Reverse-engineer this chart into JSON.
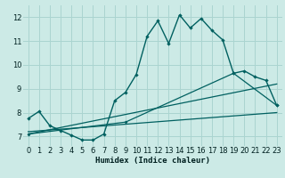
{
  "xlabel": "Humidex (Indice chaleur)",
  "bg_color": "#cceae6",
  "line_color": "#006060",
  "grid_color": "#aad4d0",
  "xlim": [
    -0.5,
    23.5
  ],
  "ylim": [
    6.6,
    12.5
  ],
  "yticks": [
    7,
    8,
    9,
    10,
    11,
    12
  ],
  "xticks": [
    0,
    1,
    2,
    3,
    4,
    5,
    6,
    7,
    8,
    9,
    10,
    11,
    12,
    13,
    14,
    15,
    16,
    17,
    18,
    19,
    20,
    21,
    22,
    23
  ],
  "main_line": [
    [
      0,
      7.75
    ],
    [
      1,
      8.05
    ],
    [
      2,
      7.45
    ],
    [
      3,
      7.25
    ],
    [
      4,
      7.05
    ],
    [
      5,
      6.85
    ],
    [
      6,
      6.85
    ],
    [
      7,
      7.1
    ],
    [
      8,
      8.5
    ],
    [
      9,
      8.85
    ],
    [
      10,
      9.6
    ],
    [
      11,
      11.2
    ],
    [
      12,
      11.85
    ],
    [
      13,
      10.9
    ],
    [
      14,
      12.1
    ],
    [
      15,
      11.55
    ],
    [
      16,
      11.95
    ],
    [
      17,
      11.45
    ],
    [
      18,
      11.05
    ],
    [
      19,
      9.65
    ],
    [
      20,
      9.75
    ],
    [
      21,
      9.5
    ],
    [
      22,
      9.35
    ],
    [
      23,
      8.3
    ]
  ],
  "flat_line": [
    [
      0,
      7.2
    ],
    [
      23,
      8.0
    ]
  ],
  "mid_line": [
    [
      0,
      7.1
    ],
    [
      23,
      9.2
    ]
  ],
  "top_env_line": [
    [
      0,
      7.1
    ],
    [
      9,
      7.6
    ],
    [
      19,
      9.65
    ],
    [
      23,
      8.3
    ]
  ]
}
